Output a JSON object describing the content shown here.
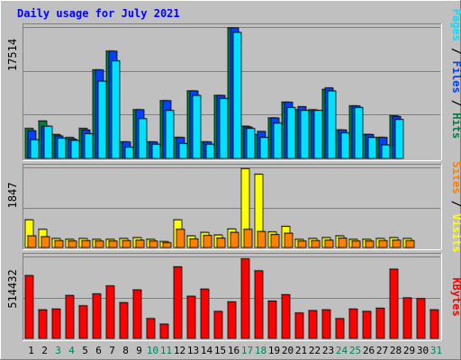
{
  "colors": {
    "background": "#c0c0c0",
    "panel": "#c0c0c0",
    "hits": "#008040",
    "files": "#0040ff",
    "pages": "#00e0ff",
    "visits": "#ffff00",
    "sites": "#ff8000",
    "kbytes": "#ff0000",
    "title": "#0000ff",
    "text": "#000000",
    "weekend": "#00805c"
  },
  "chart_data": {
    "type": "bar",
    "title": "Daily usage for July 2021",
    "categories": [
      "1",
      "2",
      "3",
      "4",
      "5",
      "6",
      "7",
      "8",
      "9",
      "10",
      "11",
      "12",
      "13",
      "14",
      "15",
      "16",
      "17",
      "18",
      "19",
      "20",
      "21",
      "22",
      "23",
      "24",
      "25",
      "26",
      "27",
      "28",
      "29",
      "30",
      "31"
    ],
    "weekend_days": [
      "3",
      "4",
      "10",
      "11",
      "17",
      "18",
      "24",
      "25",
      "31"
    ],
    "panels": [
      {
        "max_label": "17514",
        "legend": [
          {
            "label": "Pages",
            "color": "#00e0ff"
          },
          {
            "label": "Files",
            "color": "#0040ff"
          },
          {
            "label": "Hits",
            "color": "#008040"
          }
        ],
        "ylim": [
          0,
          17514
        ],
        "series": [
          {
            "name": "Hits",
            "values": [
              4000,
              5000,
              3200,
              2800,
              4000,
              11800,
              14300,
              2200,
              6500,
              2200,
              7700,
              2800,
              9000,
              2200,
              8400,
              17400,
              4300,
              3200,
              5400,
              7500,
              6500,
              6500,
              9200,
              3800,
              7000,
              3200,
              2800,
              5700,
              0,
              0,
              0
            ]
          },
          {
            "name": "Files",
            "values": [
              3700,
              4300,
              3000,
              2600,
              3800,
              11800,
              14300,
              2200,
              6500,
              2200,
              7700,
              2800,
              9000,
              2200,
              8400,
              17400,
              4200,
              3600,
              5400,
              7500,
              6900,
              6400,
              9400,
              3800,
              7000,
              3200,
              2800,
              5600,
              0,
              0,
              0
            ]
          },
          {
            "name": "Pages",
            "values": [
              2500,
              4300,
              2700,
              2400,
              3300,
              10300,
              13000,
              1500,
              5300,
              1900,
              6400,
              2000,
              8400,
              1900,
              8000,
              16800,
              4000,
              2800,
              4700,
              6800,
              6400,
              6400,
              9000,
              3400,
              6800,
              2800,
              1800,
              5200,
              0,
              0,
              0
            ]
          }
        ]
      },
      {
        "max_label": "1847",
        "legend": [
          {
            "label": "Sites",
            "color": "#ff8000"
          },
          {
            "label": "Visits",
            "color": "#ffff00"
          }
        ],
        "ylim": [
          0,
          1847
        ],
        "series": [
          {
            "name": "Visits",
            "values": [
              640,
              420,
              210,
              190,
              210,
              190,
              190,
              210,
              230,
              190,
              140,
              640,
              270,
              350,
              290,
              430,
              1820,
              1690,
              360,
              490,
              190,
              210,
              230,
              270,
              190,
              190,
              210,
              230,
              210,
              0,
              0
            ]
          },
          {
            "name": "Sites",
            "values": [
              270,
              250,
              160,
              150,
              160,
              150,
              150,
              160,
              170,
              150,
              110,
              420,
              200,
              280,
              220,
              350,
              420,
              370,
              300,
              330,
              150,
              160,
              170,
              220,
              150,
              150,
              160,
              170,
              160,
              0,
              0
            ]
          }
        ]
      },
      {
        "max_label": "514432",
        "legend": [
          {
            "label": "KBytes",
            "color": "#ff0000"
          }
        ],
        "ylim": [
          0,
          514432
        ],
        "series": [
          {
            "name": "KBytes",
            "values": [
              395000,
              180000,
              185000,
              270000,
              205000,
              280000,
              330000,
              225000,
              305000,
              125000,
              90000,
              450000,
              265000,
              310000,
              170000,
              230000,
              500000,
              425000,
              235000,
              275000,
              160000,
              175000,
              180000,
              125000,
              185000,
              170000,
              190000,
              435000,
              255000,
              250000,
              180000
            ]
          }
        ]
      }
    ]
  }
}
